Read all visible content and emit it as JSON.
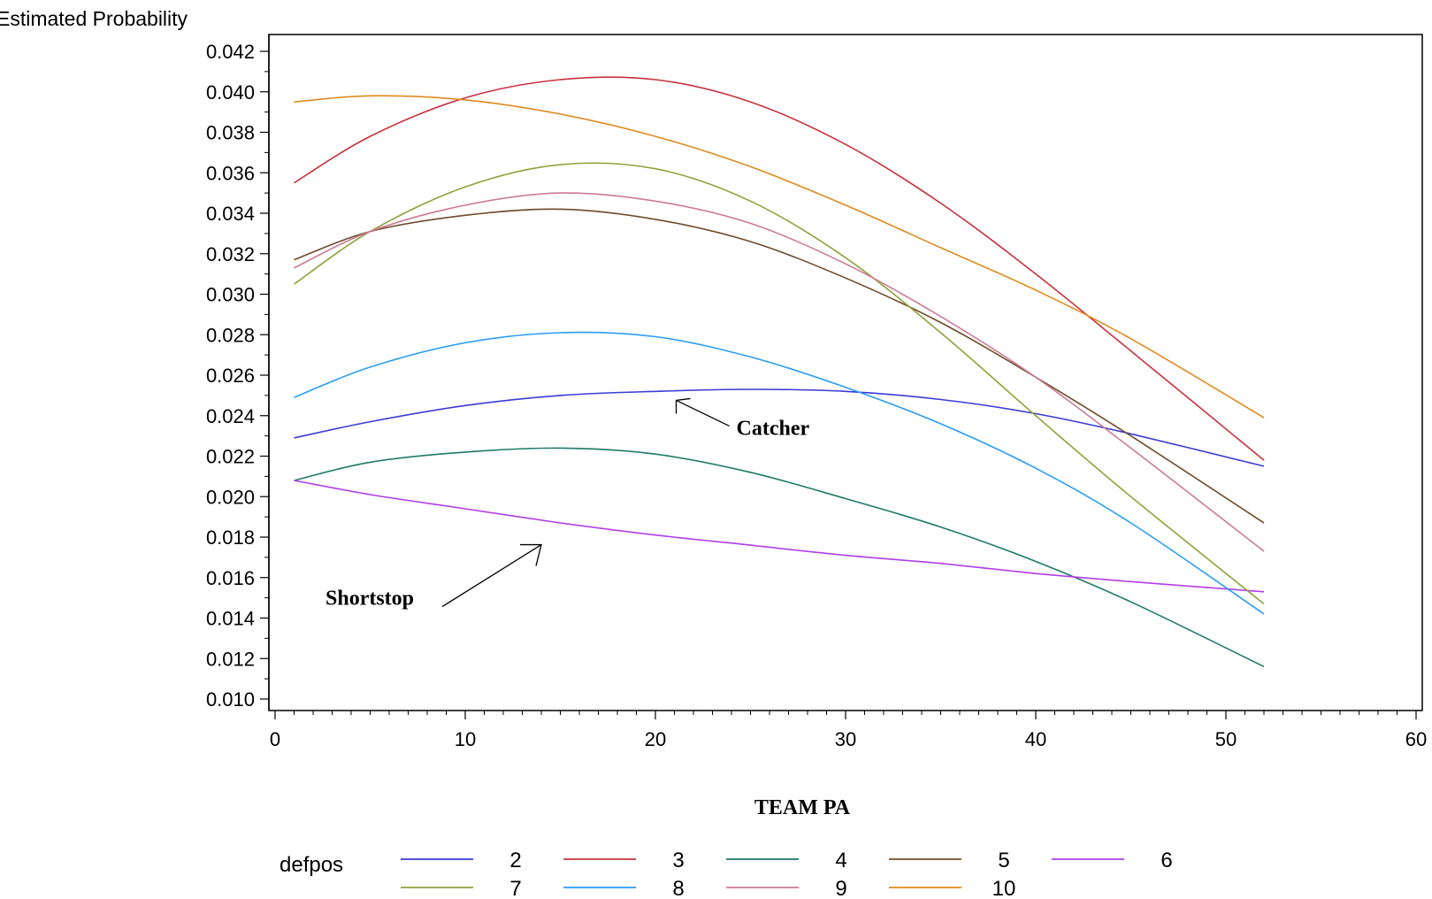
{
  "chart_data": {
    "type": "line",
    "title": "",
    "ylabel": "Estimated Probability",
    "xlabel": "TEAM PA",
    "xlim": [
      0,
      60
    ],
    "ylim": [
      0.01,
      0.042
    ],
    "x_ticks": [
      "0",
      "10",
      "20",
      "30",
      "40",
      "50",
      "60"
    ],
    "y_ticks": [
      "0.010",
      "0.012",
      "0.014",
      "0.016",
      "0.018",
      "0.020",
      "0.022",
      "0.024",
      "0.026",
      "0.028",
      "0.030",
      "0.032",
      "0.034",
      "0.036",
      "0.038",
      "0.040",
      "0.042"
    ],
    "legend": {
      "title": "defpos",
      "placement": "bottom"
    },
    "grid": false,
    "x": [
      1,
      5,
      10,
      15,
      20,
      25,
      30,
      35,
      40,
      45,
      52
    ],
    "series": [
      {
        "name": "2",
        "color": "#3a3ad6",
        "values": [
          0.0229,
          0.0237,
          0.0245,
          0.025,
          0.0252,
          0.0253,
          0.0252,
          0.0248,
          0.0241,
          0.0231,
          0.0215
        ]
      },
      {
        "name": "3",
        "color": "#c8313f",
        "values": [
          0.0355,
          0.0378,
          0.0397,
          0.0406,
          0.0406,
          0.0395,
          0.0374,
          0.0345,
          0.031,
          0.0272,
          0.0218
        ]
      },
      {
        "name": "4",
        "color": "#1e7a68",
        "values": [
          0.0208,
          0.0217,
          0.0222,
          0.0224,
          0.0221,
          0.0212,
          0.0199,
          0.0185,
          0.0168,
          0.0148,
          0.0116
        ]
      },
      {
        "name": "5",
        "color": "#6e4b2a",
        "values": [
          0.0317,
          0.0331,
          0.0339,
          0.0342,
          0.0337,
          0.0326,
          0.0308,
          0.0286,
          0.0259,
          0.023,
          0.0187
        ]
      },
      {
        "name": "6",
        "color": "#b13ee8",
        "values": [
          0.0208,
          0.0201,
          0.0194,
          0.0187,
          0.0181,
          0.0176,
          0.0171,
          0.0167,
          0.0162,
          0.0158,
          0.0153
        ]
      },
      {
        "name": "7",
        "color": "#8da33a",
        "values": [
          0.0305,
          0.0331,
          0.0353,
          0.0364,
          0.0362,
          0.0346,
          0.0318,
          0.0281,
          0.024,
          0.02,
          0.0147
        ]
      },
      {
        "name": "8",
        "color": "#2a9df4",
        "values": [
          0.0249,
          0.0264,
          0.0276,
          0.0281,
          0.0279,
          0.0269,
          0.0254,
          0.0236,
          0.0214,
          0.0187,
          0.0142
        ]
      },
      {
        "name": "9",
        "color": "#cc7b95",
        "values": [
          0.0313,
          0.0331,
          0.0344,
          0.035,
          0.0346,
          0.0335,
          0.0315,
          0.0289,
          0.0259,
          0.0224,
          0.0173
        ]
      },
      {
        "name": "10",
        "color": "#e08a1e",
        "values": [
          0.0395,
          0.0398,
          0.0396,
          0.0389,
          0.0378,
          0.0363,
          0.0344,
          0.0323,
          0.0302,
          0.0278,
          0.0239
        ]
      }
    ],
    "annotations": [
      {
        "text": "Catcher",
        "x": 21,
        "y": 0.0248
      },
      {
        "text": "Shortstop",
        "x": 14,
        "y": 0.0178
      }
    ]
  }
}
